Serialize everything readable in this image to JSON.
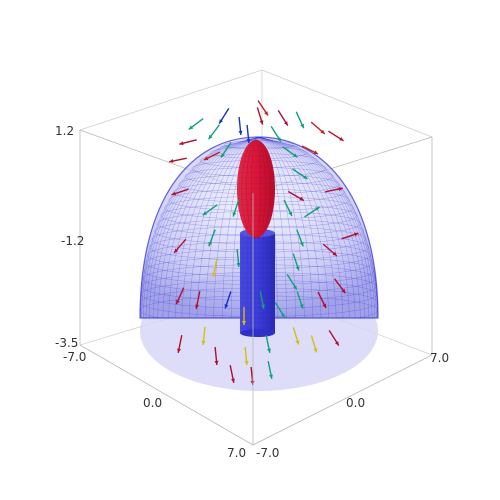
{
  "plot": {
    "title": "",
    "axis_ticks": {
      "z_top": "1.2",
      "z_mid": "-1.2",
      "z_bottom": "-3.5",
      "x_min": "-7.0",
      "x_mid": "0.0",
      "x_max": "7.0",
      "y_min": "-7.0",
      "y_mid": "0.0",
      "y_max": "7.0"
    },
    "objects": {
      "dome": "semi-ellipsoid mesh surface",
      "upper_body": "red ellipsoid",
      "lower_body": "blue cylinder",
      "field": "vector field arrows"
    },
    "colors": {
      "dome_fill": "#c8c8f6",
      "dome_mesh": "#2a2ad0",
      "ellipsoid": "#d8163a",
      "cylinder": "#3c3cd8",
      "arrow_palette": [
        "#b01030",
        "#d4bf10",
        "#10a07a",
        "#1830c8",
        "#c02020"
      ]
    }
  }
}
